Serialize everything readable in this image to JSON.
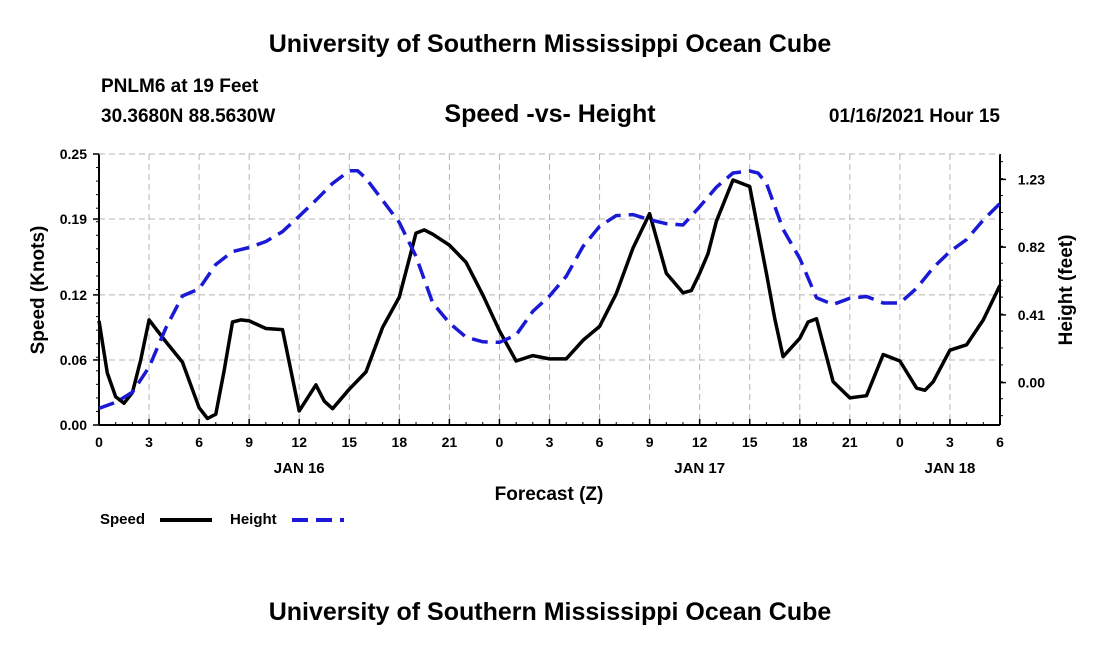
{
  "header": {
    "org_title": "University of Southern Mississippi Ocean Cube",
    "station": "PNLM6 at 19 Feet",
    "coordinates": "30.3680N 88.5630W",
    "chart_title": "Speed -vs- Height",
    "run_time": "01/16/2021 Hour 15"
  },
  "footer": {
    "org_title": "University of Southern Mississippi Ocean Cube"
  },
  "colors": {
    "speed": "#000000",
    "height": "#1a1ad6",
    "grid": "#b4b4b4"
  },
  "chart_data": {
    "type": "line",
    "title": "Speed -vs- Height",
    "xlabel": "Forecast (Z)",
    "ylabel": "Speed (Knots)",
    "y2label": "Height (feet)",
    "x_unit": "hours since 2021-01-16 00Z",
    "xlim": [
      0,
      54
    ],
    "ylim": [
      0,
      0.25
    ],
    "y2lim": [
      -0.2566,
      1.3838
    ],
    "x_ticks": [
      0,
      3,
      6,
      9,
      12,
      15,
      18,
      21,
      24,
      27,
      30,
      33,
      36,
      39,
      42,
      45,
      48,
      51,
      54
    ],
    "x_tick_labels": [
      "0",
      "3",
      "6",
      "9",
      "12",
      "15",
      "18",
      "21",
      "0",
      "3",
      "6",
      "9",
      "12",
      "15",
      "18",
      "21",
      "0",
      "3",
      "6"
    ],
    "y_ticks": [
      0,
      0.06,
      0.12,
      0.19,
      0.25
    ],
    "y_tick_labels": [
      "0.00",
      "0.06",
      "0.12",
      "0.19",
      "0.25"
    ],
    "y2_ticks": [
      0.0,
      0.41,
      0.82,
      1.23
    ],
    "y2_tick_labels": [
      "0.00",
      "0.41",
      "0.82",
      "1.23"
    ],
    "day_labels": [
      {
        "x": 12,
        "label": "JAN 16"
      },
      {
        "x": 36,
        "label": "JAN 17"
      },
      {
        "x": 51,
        "label": "JAN 18"
      }
    ],
    "grid": true,
    "legend": {
      "placement": "bottom-left"
    },
    "series": [
      {
        "name": "Speed",
        "axis": "left",
        "style": "solid",
        "x": [
          0,
          0.5,
          1,
          1.5,
          2,
          2.5,
          3,
          4,
          5,
          6,
          6.5,
          7,
          7.5,
          8,
          8.5,
          9,
          10,
          11,
          12,
          13,
          13.5,
          14,
          15,
          16,
          17,
          18,
          19,
          19.5,
          20,
          21,
          22,
          23,
          24,
          25,
          26,
          27,
          28,
          29,
          30,
          31,
          32,
          33,
          34,
          35,
          35.5,
          36,
          36.5,
          37,
          38,
          39,
          40,
          40.5,
          41,
          42,
          42.5,
          43,
          44,
          45,
          46,
          47,
          48,
          49,
          49.5,
          50,
          51,
          52,
          53,
          54
        ],
        "values": [
          0.096,
          0.048,
          0.026,
          0.02,
          0.03,
          0.06,
          0.097,
          0.077,
          0.058,
          0.016,
          0.006,
          0.01,
          0.05,
          0.095,
          0.097,
          0.096,
          0.089,
          0.088,
          0.013,
          0.037,
          0.022,
          0.015,
          0.033,
          0.049,
          0.09,
          0.118,
          0.177,
          0.18,
          0.176,
          0.166,
          0.15,
          0.12,
          0.087,
          0.059,
          0.064,
          0.061,
          0.061,
          0.078,
          0.091,
          0.121,
          0.163,
          0.195,
          0.14,
          0.122,
          0.124,
          0.14,
          0.158,
          0.188,
          0.226,
          0.22,
          0.14,
          0.098,
          0.063,
          0.08,
          0.095,
          0.098,
          0.04,
          0.025,
          0.027,
          0.065,
          0.059,
          0.034,
          0.032,
          0.04,
          0.069,
          0.074,
          0.097,
          0.129
        ]
      },
      {
        "name": "Height",
        "axis": "right",
        "style": "dashed",
        "x": [
          0,
          1,
          2,
          3,
          4,
          5,
          6,
          7,
          8,
          9,
          10,
          11,
          12,
          13,
          14,
          15,
          15.5,
          16,
          17,
          18,
          19,
          20,
          21,
          22,
          23,
          24,
          25,
          26,
          27,
          28,
          29,
          30,
          31,
          32,
          33,
          34,
          35,
          36,
          37,
          38,
          39,
          39.5,
          40,
          41,
          42,
          43,
          44,
          45,
          46,
          47,
          48,
          49,
          50,
          51,
          52,
          53,
          54
        ],
        "values": [
          -0.156,
          -0.119,
          -0.058,
          0.094,
          0.329,
          0.524,
          0.567,
          0.715,
          0.793,
          0.818,
          0.854,
          0.914,
          1.007,
          1.104,
          1.206,
          1.282,
          1.283,
          1.236,
          1.103,
          0.969,
          0.764,
          0.482,
          0.361,
          0.275,
          0.247,
          0.244,
          0.288,
          0.431,
          0.524,
          0.643,
          0.823,
          0.946,
          1.011,
          1.017,
          0.986,
          0.962,
          0.954,
          1.065,
          1.183,
          1.269,
          1.281,
          1.268,
          1.207,
          0.928,
          0.751,
          0.514,
          0.473,
          0.511,
          0.521,
          0.482,
          0.482,
          0.571,
          0.696,
          0.793,
          0.866,
          0.984,
          1.084
        ]
      }
    ]
  }
}
